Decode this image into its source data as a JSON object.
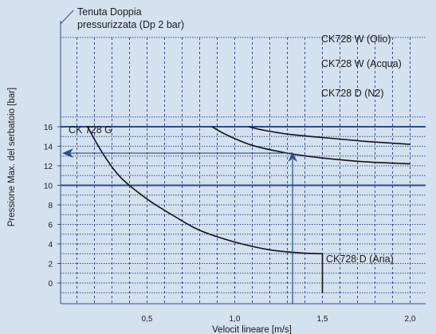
{
  "chart_data": {
    "type": "line",
    "title": "",
    "xlabel": "Velocit  lineare [m/s]",
    "ylabel": "Pressione Max. del serbatoio [bar]",
    "xlim": [
      0,
      2.0
    ],
    "ylim": [
      -1,
      17
    ],
    "x_ticks": [
      "0,5",
      "1,0",
      "1,5",
      "2,0"
    ],
    "y_ticks": [
      "0",
      "2",
      "4",
      "6",
      "8",
      "10",
      "12",
      "14",
      "16"
    ],
    "grid": true,
    "annotation_title": "Tenuta Doppia\npressurizzata (Dp 2 bar)",
    "limits": [
      {
        "label": "CK728 W (Olio)",
        "y": 16
      },
      {
        "label": "CK 728 G",
        "y": 10
      }
    ],
    "series": [
      {
        "name": "CK728 D (Aria)",
        "x": [
          0.16,
          0.25,
          0.35,
          0.5,
          0.65,
          0.8,
          1.0,
          1.2,
          1.4,
          1.5,
          1.5
        ],
        "y": [
          16,
          13.2,
          10.8,
          8.6,
          6.9,
          5.4,
          4.2,
          3.4,
          3.05,
          3.0,
          -1
        ]
      },
      {
        "name": "CK728 W (Acqua)",
        "x": [
          0.87,
          0.95,
          1.1,
          1.3,
          1.5,
          1.75,
          2.0
        ],
        "y": [
          16,
          15.2,
          14.1,
          13.3,
          12.8,
          12.4,
          12.2
        ]
      },
      {
        "name": "CK728 D (N2)",
        "x": [
          1.08,
          1.15,
          1.3,
          1.5,
          1.75,
          2.0
        ],
        "y": [
          16,
          15.7,
          15.25,
          14.9,
          14.5,
          14.2
        ]
      }
    ],
    "example": {
      "x": 1.33,
      "y": 13.3
    },
    "colors": {
      "background": "#d4e1ef",
      "limit_line": "#2a4d8f",
      "curve": "#111111",
      "arrow": "#2a4d8f",
      "grid": "#3a4d8c"
    }
  }
}
